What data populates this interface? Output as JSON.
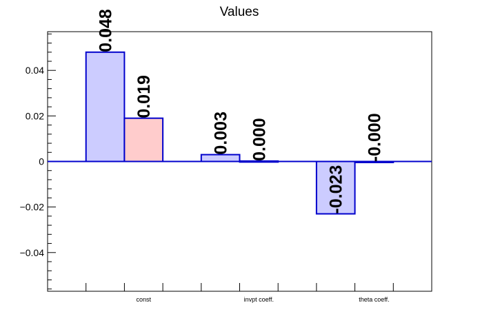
{
  "chart_data": {
    "type": "bar",
    "title": "Values",
    "categories": [
      "const",
      "invpt coeff.",
      "theta coeff."
    ],
    "series": [
      {
        "values": [
          0.048,
          0.003,
          -0.023
        ],
        "labels": [
          "0.048",
          "0.003",
          "-0.023"
        ],
        "fill": "#ccccff",
        "stroke": "#0000cc"
      },
      {
        "values": [
          0.019,
          0.0002,
          -0.0002
        ],
        "labels": [
          "0.019",
          "0.000",
          "-0.000"
        ],
        "fill": "#ffcccc",
        "stroke": "#0000cc"
      }
    ],
    "yticks": [
      -0.04,
      -0.02,
      0,
      0.02,
      0.04
    ],
    "ytick_labels": [
      "−0.04",
      "−0.02",
      "0",
      "0.02",
      "0.04"
    ],
    "ylim": [
      -0.057,
      0.057
    ],
    "xlabel": "",
    "ylabel": "",
    "grid": false
  }
}
